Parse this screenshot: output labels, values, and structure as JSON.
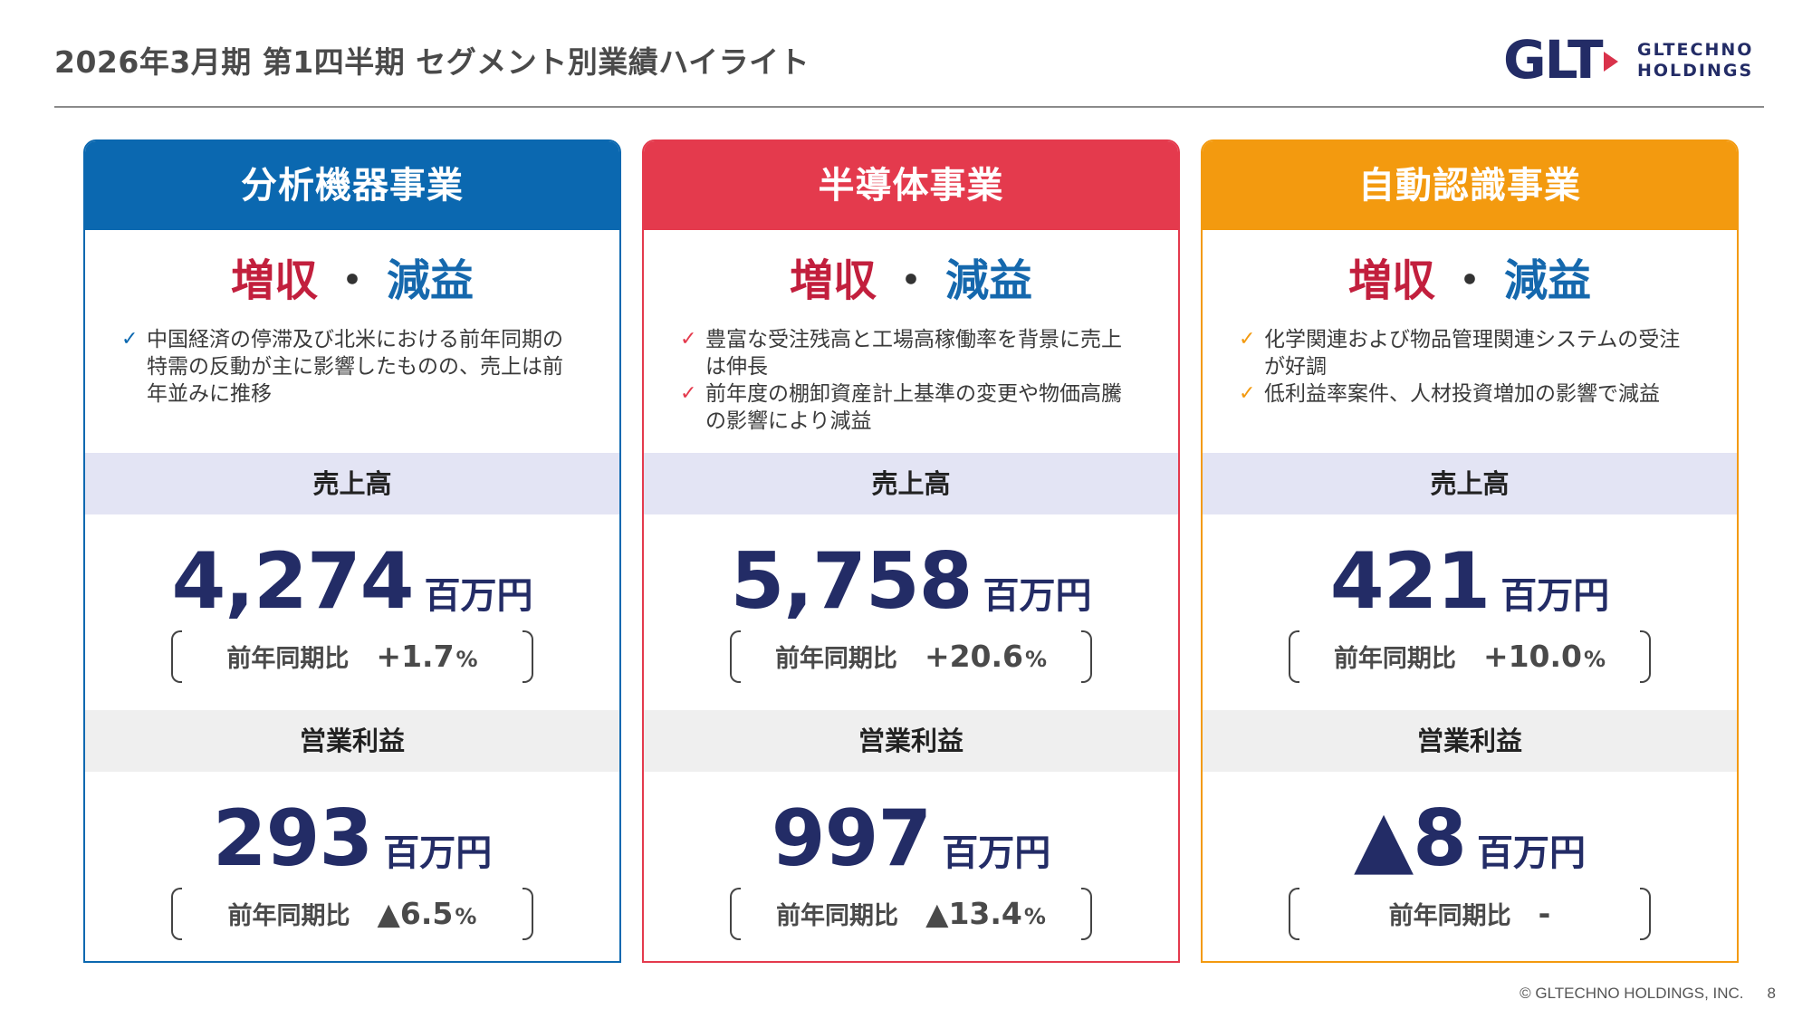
{
  "page": {
    "title": "2026年3月期 第1四半期 セグメント別業績ハイライト",
    "logo": {
      "mark": "GLT",
      "line1": "GLTECHNO",
      "line2": "HOLDINGS"
    },
    "copyright": "© GLTECHNO HOLDINGS, INC.",
    "page_number": "8"
  },
  "colors": {
    "analysis": "#0b68b0",
    "semiconductor": "#e43a4d",
    "auto_id": "#f39a0f",
    "value_navy": "#232c66"
  },
  "labels": {
    "sales": "売上高",
    "operating_profit": "営業利益",
    "unit": "百万円",
    "yoy": "前年同期比",
    "percent": "%",
    "check_icon": "checkmark-icon"
  },
  "segments": [
    {
      "name": "分析機器事業",
      "verdict_up": "増収",
      "verdict_sep": "・",
      "verdict_down": "減益",
      "bullets": [
        "中国経済の停滞及び北米における前年同期の特需の反動が主に影響したものの、売上は前年並みに推移"
      ],
      "sales_value": "4,274",
      "sales_yoy": "+1.7",
      "op_value": "293",
      "op_yoy": "▲6.5"
    },
    {
      "name": "半導体事業",
      "verdict_up": "増収",
      "verdict_sep": "・",
      "verdict_down": "減益",
      "bullets": [
        "豊富な受注残高と工場高稼働率を背景に売上は伸長",
        "前年度の棚卸資産計上基準の変更や物価高騰の影響により減益"
      ],
      "sales_value": "5,758",
      "sales_yoy": "+20.6",
      "op_value": "997",
      "op_yoy": "▲13.4"
    },
    {
      "name": "自動認識事業",
      "verdict_up": "増収",
      "verdict_sep": "・",
      "verdict_down": "減益",
      "bullets": [
        "化学関連および物品管理関連システムの受注が好調",
        "低利益率案件、人材投資増加の影響で減益"
      ],
      "sales_value": "421",
      "sales_yoy": "+10.0",
      "op_value": "▲8",
      "op_yoy": "-"
    }
  ]
}
